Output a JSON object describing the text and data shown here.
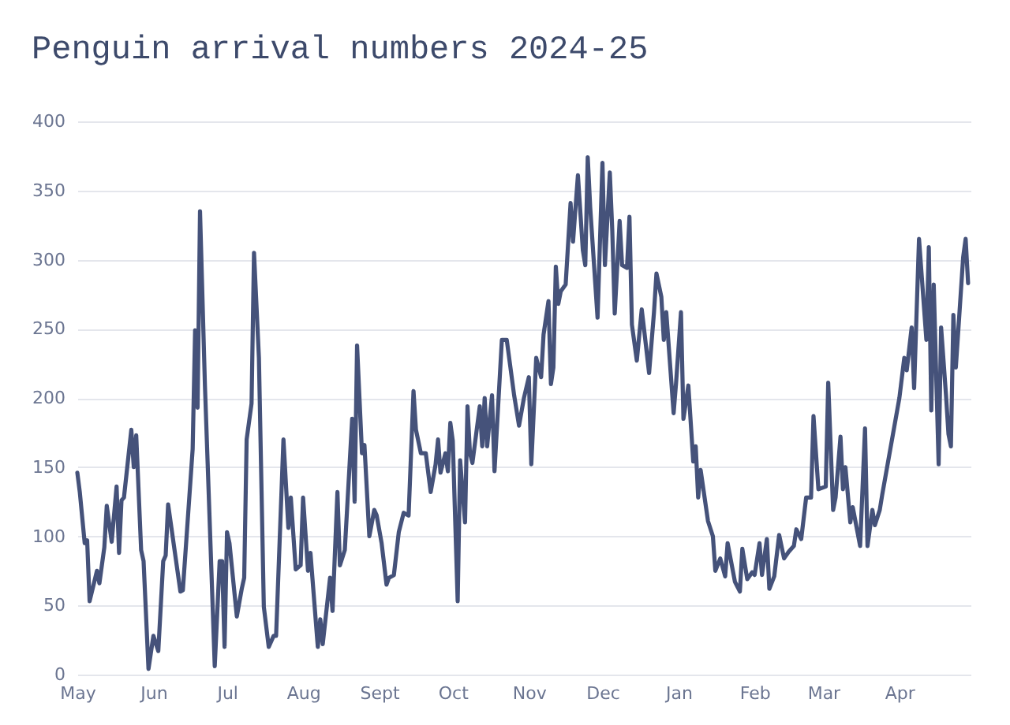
{
  "chart_data": {
    "type": "line",
    "title": "Penguin arrival numbers 2024-25",
    "x": [
      "2024-05-01",
      "2024-05-02",
      "2024-05-04",
      "2024-05-05",
      "2024-05-06",
      "2024-05-09",
      "2024-05-10",
      "2024-05-12",
      "2024-05-13",
      "2024-05-15",
      "2024-05-17",
      "2024-05-18",
      "2024-05-19",
      "2024-05-20",
      "2024-05-23",
      "2024-05-24",
      "2024-05-25",
      "2024-05-27",
      "2024-05-28",
      "2024-05-30",
      "2024-06-01",
      "2024-06-03",
      "2024-06-05",
      "2024-06-06",
      "2024-06-07",
      "2024-06-12",
      "2024-06-13",
      "2024-06-17",
      "2024-06-18",
      "2024-06-19",
      "2024-06-20",
      "2024-06-22",
      "2024-06-26",
      "2024-06-28",
      "2024-06-29",
      "2024-06-30",
      "2024-07-01",
      "2024-07-02",
      "2024-07-05",
      "2024-07-07",
      "2024-07-08",
      "2024-07-09",
      "2024-07-11",
      "2024-07-12",
      "2024-07-14",
      "2024-07-16",
      "2024-07-18",
      "2024-07-20",
      "2024-07-21",
      "2024-07-24",
      "2024-07-26",
      "2024-07-27",
      "2024-07-29",
      "2024-07-31",
      "2024-08-01",
      "2024-08-03",
      "2024-08-04",
      "2024-08-07",
      "2024-08-08",
      "2024-08-09",
      "2024-08-12",
      "2024-08-13",
      "2024-08-15",
      "2024-08-16",
      "2024-08-18",
      "2024-08-21",
      "2024-08-22",
      "2024-08-23",
      "2024-08-25",
      "2024-08-26",
      "2024-08-28",
      "2024-08-30",
      "2024-08-31",
      "2024-09-02",
      "2024-09-04",
      "2024-09-05",
      "2024-09-07",
      "2024-09-09",
      "2024-09-11",
      "2024-09-13",
      "2024-09-15",
      "2024-09-16",
      "2024-09-18",
      "2024-09-20",
      "2024-09-22",
      "2024-09-24",
      "2024-09-25",
      "2024-09-26",
      "2024-09-28",
      "2024-09-29",
      "2024-09-30",
      "2024-10-01",
      "2024-10-03",
      "2024-10-04",
      "2024-10-06",
      "2024-10-07",
      "2024-10-08",
      "2024-10-09",
      "2024-10-12",
      "2024-10-13",
      "2024-10-14",
      "2024-10-15",
      "2024-10-17",
      "2024-10-18",
      "2024-10-21",
      "2024-10-23",
      "2024-10-26",
      "2024-10-28",
      "2024-10-30",
      "2024-11-01",
      "2024-11-02",
      "2024-11-04",
      "2024-11-06",
      "2024-11-07",
      "2024-11-09",
      "2024-11-10",
      "2024-11-11",
      "2024-11-12",
      "2024-11-13",
      "2024-11-14",
      "2024-11-16",
      "2024-11-18",
      "2024-11-19",
      "2024-11-21",
      "2024-11-23",
      "2024-11-24",
      "2024-11-25",
      "2024-11-26",
      "2024-11-29",
      "2024-12-01",
      "2024-12-02",
      "2024-12-04",
      "2024-12-05",
      "2024-12-06",
      "2024-12-08",
      "2024-12-09",
      "2024-12-11",
      "2024-12-12",
      "2024-12-13",
      "2024-12-15",
      "2024-12-17",
      "2024-12-18",
      "2024-12-20",
      "2024-12-22",
      "2024-12-23",
      "2024-12-25",
      "2024-12-26",
      "2024-12-27",
      "2024-12-30",
      "2024-12-31",
      "2025-01-02",
      "2025-01-03",
      "2025-01-05",
      "2025-01-07",
      "2025-01-08",
      "2025-01-09",
      "2025-01-10",
      "2025-01-13",
      "2025-01-15",
      "2025-01-16",
      "2025-01-18",
      "2025-01-20",
      "2025-01-21",
      "2025-01-24",
      "2025-01-26",
      "2025-01-27",
      "2025-01-29",
      "2025-01-31",
      "2025-02-01",
      "2025-02-03",
      "2025-02-04",
      "2025-02-06",
      "2025-02-07",
      "2025-02-09",
      "2025-02-11",
      "2025-02-13",
      "2025-02-15",
      "2025-02-17",
      "2025-02-18",
      "2025-02-20",
      "2025-02-22",
      "2025-02-24",
      "2025-02-25",
      "2025-02-27",
      "2025-03-02",
      "2025-03-03",
      "2025-03-05",
      "2025-03-06",
      "2025-03-08",
      "2025-03-09",
      "2025-03-10",
      "2025-03-12",
      "2025-03-13",
      "2025-03-16",
      "2025-03-18",
      "2025-03-19",
      "2025-03-21",
      "2025-03-22",
      "2025-03-24",
      "2025-03-25",
      "2025-04-01",
      "2025-04-03",
      "2025-04-04",
      "2025-04-06",
      "2025-04-07",
      "2025-04-09",
      "2025-04-12",
      "2025-04-13",
      "2025-04-14",
      "2025-04-15",
      "2025-04-17",
      "2025-04-18",
      "2025-04-20",
      "2025-04-21",
      "2025-04-22",
      "2025-04-23",
      "2025-04-24",
      "2025-04-27",
      "2025-04-28",
      "2025-04-29"
    ],
    "series": [
      {
        "color": "#45527a",
        "values": [
          146,
          132,
          95,
          97,
          53,
          75,
          66,
          92,
          122,
          96,
          136,
          88,
          126,
          128,
          177,
          150,
          173,
          90,
          82,
          4,
          28,
          17,
          82,
          86,
          123,
          60,
          61,
          163,
          249,
          193,
          335,
          209,
          6,
          82,
          82,
          20,
          103,
          95,
          42,
          62,
          70,
          170,
          196,
          305,
          229,
          49,
          20,
          28,
          28,
          170,
          106,
          128,
          76,
          79,
          128,
          75,
          88,
          20,
          40,
          22,
          70,
          46,
          132,
          79,
          90,
          185,
          125,
          238,
          160,
          166,
          100,
          119,
          115,
          95,
          65,
          70,
          72,
          103,
          117,
          115,
          205,
          177,
          160,
          160,
          132,
          152,
          170,
          146,
          160,
          147,
          182,
          169,
          53,
          155,
          110,
          194,
          160,
          153,
          194,
          165,
          200,
          165,
          202,
          147,
          242,
          242,
          202,
          180,
          200,
          215,
          152,
          229,
          215,
          246,
          270,
          210,
          222,
          295,
          268,
          277,
          282,
          341,
          313,
          361,
          307,
          296,
          374,
          338,
          258,
          370,
          296,
          363,
          321,
          261,
          328,
          296,
          294,
          331,
          253,
          227,
          264,
          249,
          218,
          262,
          290,
          273,
          242,
          262,
          189,
          211,
          262,
          185,
          209,
          154,
          165,
          128,
          148,
          111,
          100,
          75,
          84,
          71,
          95,
          67,
          60,
          91,
          69,
          74,
          72,
          95,
          72,
          98,
          62,
          71,
          101,
          84,
          89,
          93,
          105,
          98,
          128,
          128,
          187,
          134,
          136,
          211,
          119,
          128,
          172,
          134,
          150,
          110,
          121,
          93,
          178,
          93,
          119,
          108,
          119,
          130,
          200,
          229,
          220,
          251,
          207,
          315,
          242,
          309,
          191,
          282,
          152,
          251,
          202,
          174,
          165,
          260,
          222,
          302,
          315,
          283
        ]
      }
    ],
    "xlim": [
      "2024-05-01",
      "2025-04-30"
    ],
    "xticks": [
      {
        "value": "2024-05-01",
        "label": "May"
      },
      {
        "value": "2024-06-01",
        "label": "Jun"
      },
      {
        "value": "2024-07-01",
        "label": "Jul"
      },
      {
        "value": "2024-08-01",
        "label": "Aug"
      },
      {
        "value": "2024-09-01",
        "label": "Sept"
      },
      {
        "value": "2024-10-01",
        "label": "Oct"
      },
      {
        "value": "2024-11-01",
        "label": "Nov"
      },
      {
        "value": "2024-12-01",
        "label": "Dec"
      },
      {
        "value": "2025-01-01",
        "label": "Jan"
      },
      {
        "value": "2025-02-01",
        "label": "Feb"
      },
      {
        "value": "2025-03-01",
        "label": "Mar"
      },
      {
        "value": "2025-04-01",
        "label": "Apr"
      }
    ],
    "ylim": [
      0,
      400
    ],
    "yticks": [
      0,
      50,
      100,
      150,
      200,
      250,
      300,
      350,
      400
    ],
    "grid": "y"
  }
}
